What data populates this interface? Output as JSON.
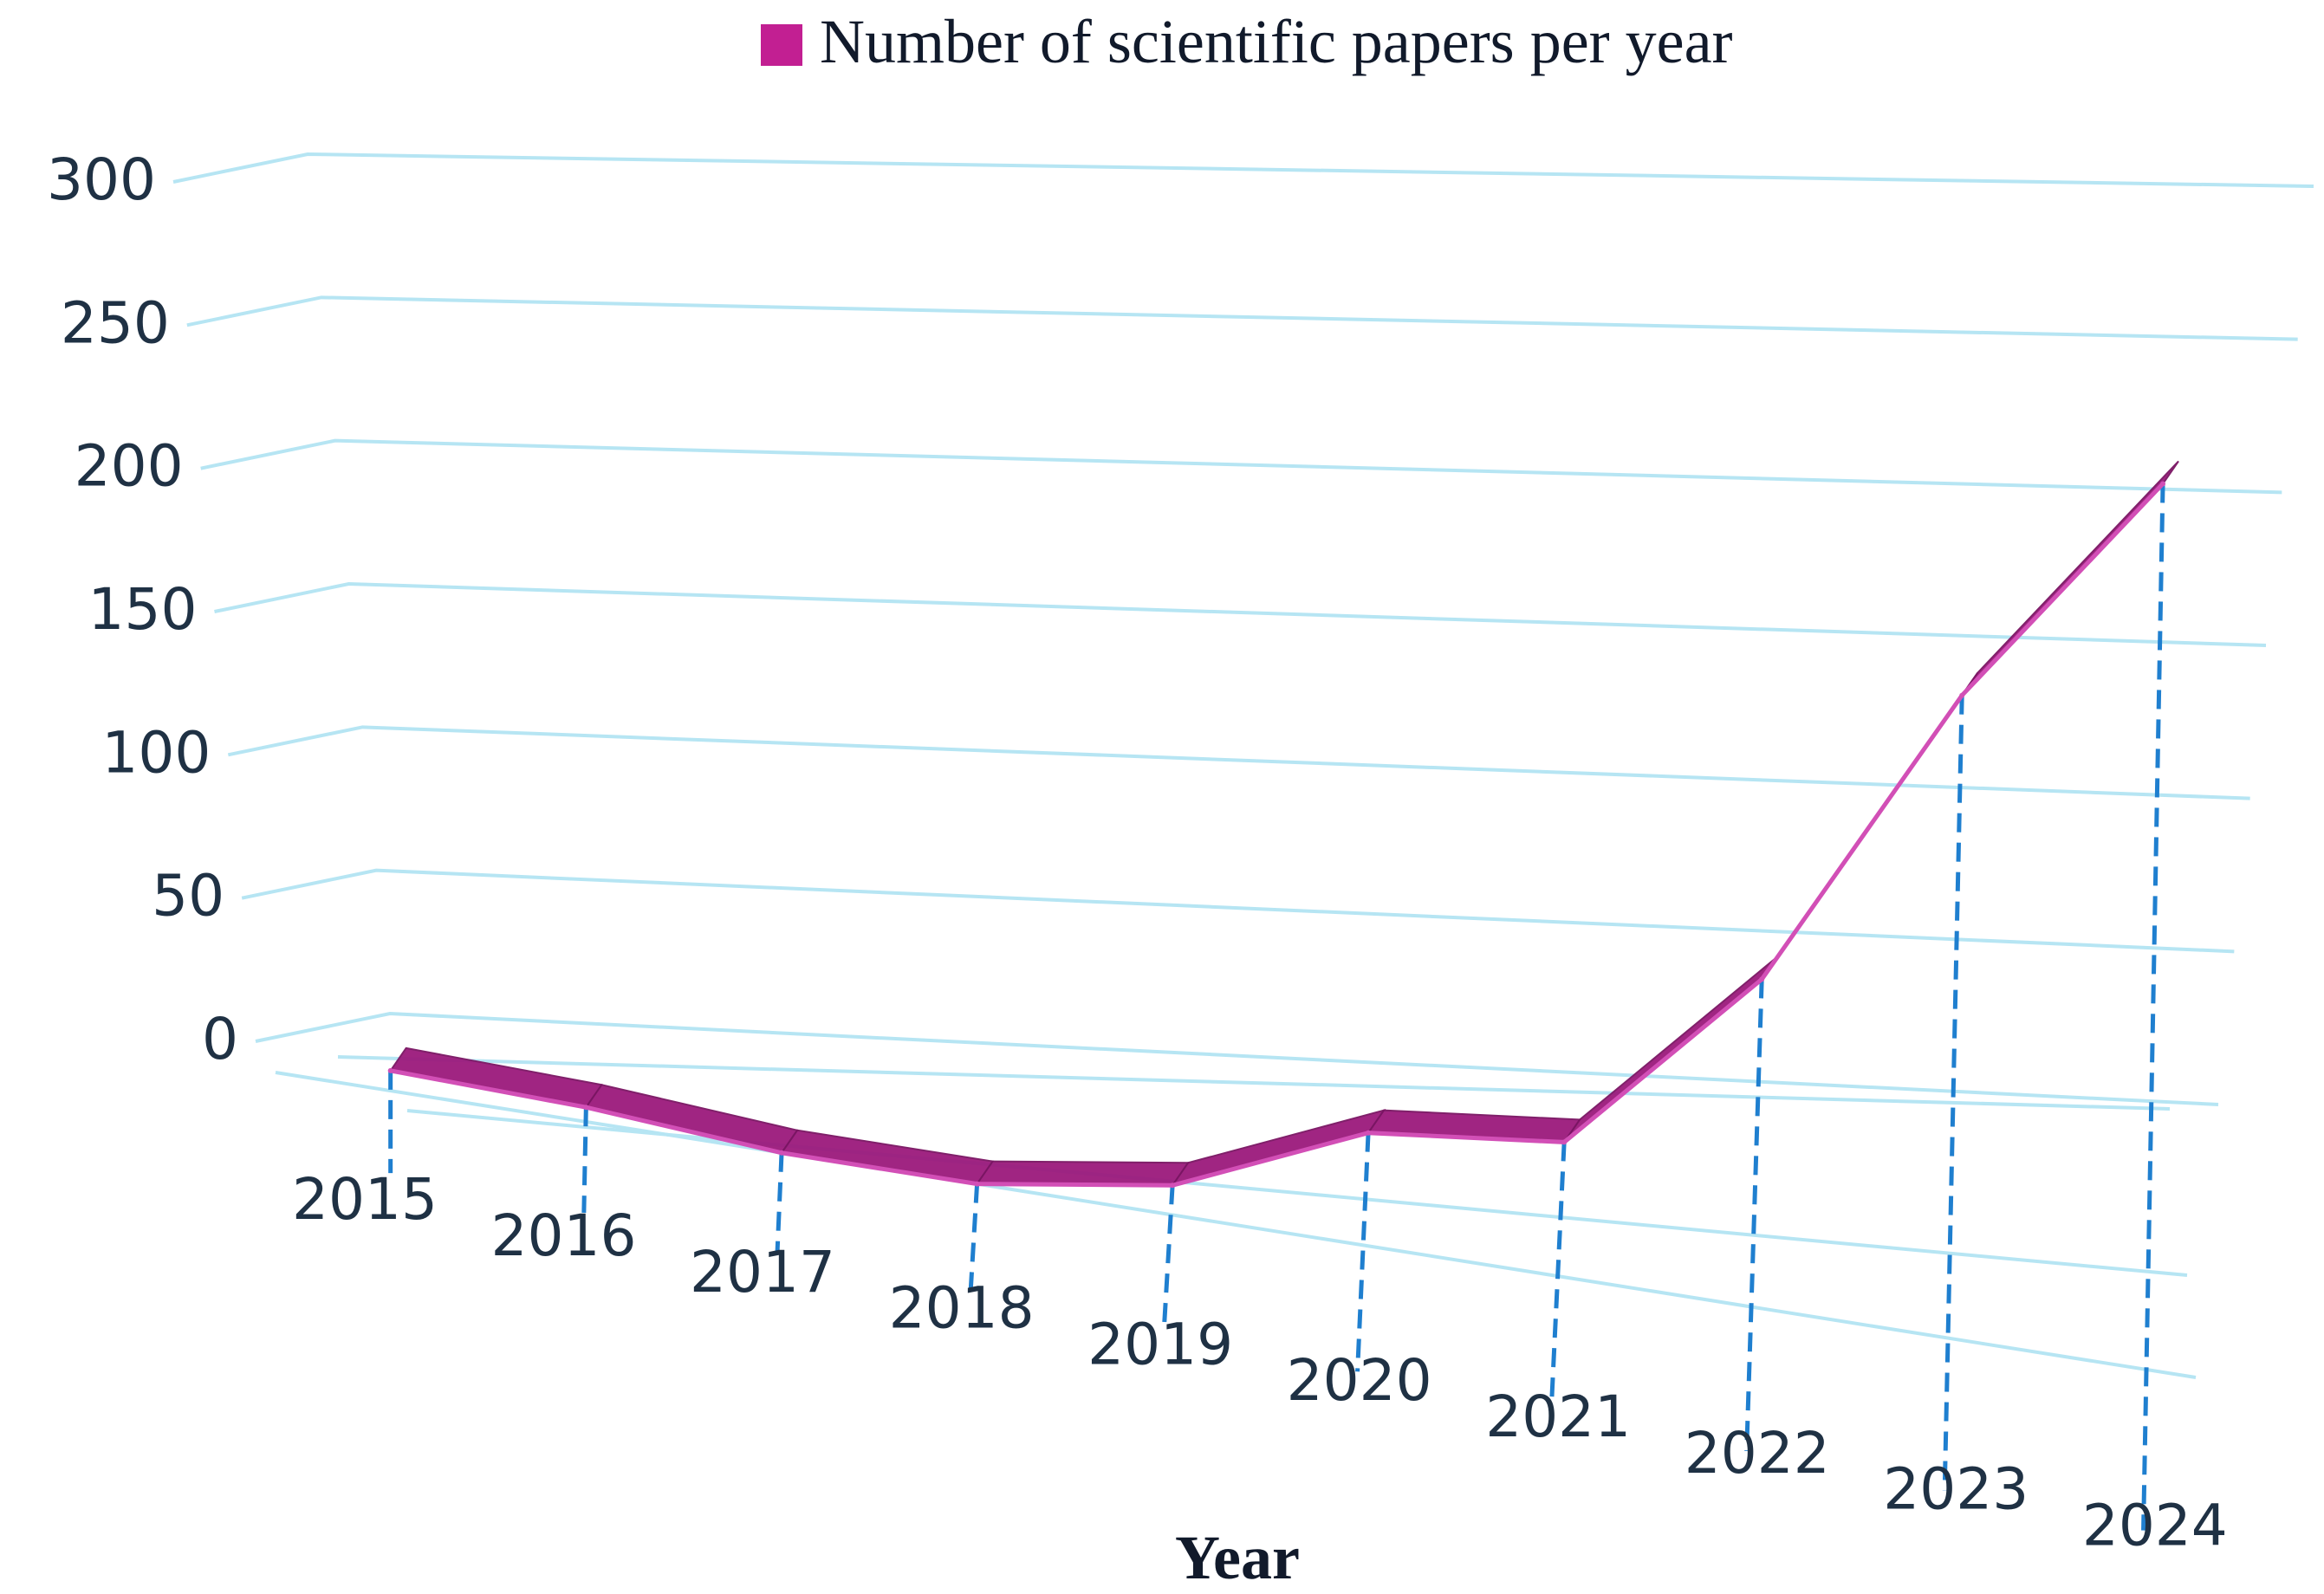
{
  "chart_data": {
    "type": "line",
    "style": "3d-ribbon",
    "title": "",
    "xlabel": "Year",
    "ylabel": "",
    "ylim": [
      0,
      300
    ],
    "yticks": [
      0,
      50,
      100,
      150,
      200,
      250,
      300
    ],
    "categories": [
      "2015",
      "2016",
      "2017",
      "2018",
      "2019",
      "2020",
      "2021",
      "2022",
      "2023",
      "2024"
    ],
    "series": [
      {
        "name": "Number of scientific papers per year",
        "values": [
          7,
          5,
          0,
          0,
          10,
          38,
          45,
          109,
          212,
          290
        ]
      }
    ],
    "legend_position": "top",
    "grid": true,
    "colors": {
      "ribbon_top": "#9b1a7c",
      "ribbon_side": "#7a1563",
      "line": "#d24fb6",
      "legend_swatch": "#c21f92",
      "grid": "#b6e5f3",
      "drop_line": "#1f7fcf",
      "text": "#1f3144"
    }
  }
}
